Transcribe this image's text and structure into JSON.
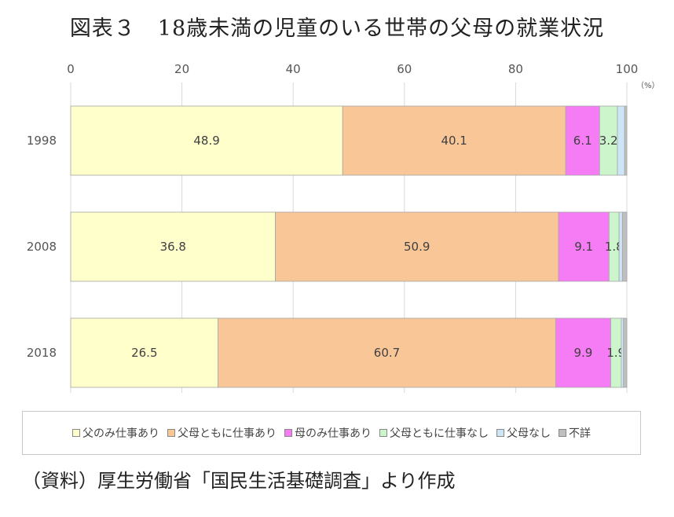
{
  "title": "図表３　18歳未満の児童のいる世帯の父母の就業状況",
  "source": "（資料）厚生労働省「国民生活基礎調査」より作成",
  "chart_data": {
    "type": "bar",
    "orientation": "horizontal",
    "stacked": true,
    "unit_label": "（%）",
    "xlim": [
      0,
      100
    ],
    "xticks": [
      0,
      20,
      40,
      60,
      80,
      100
    ],
    "categories": [
      "1998",
      "2008",
      "2018"
    ],
    "series": [
      {
        "name": "父のみ仕事あり",
        "color": "#FFFFCC",
        "values": [
          48.9,
          36.8,
          26.5
        ],
        "labels": [
          "48.9",
          "36.8",
          "26.5"
        ]
      },
      {
        "name": "父母ともに仕事あり",
        "color": "#F9C698",
        "values": [
          40.1,
          50.9,
          60.7
        ],
        "labels": [
          "40.1",
          "50.9",
          "60.7"
        ]
      },
      {
        "name": "母のみ仕事あり",
        "color": "#F57CF5",
        "values": [
          6.1,
          9.1,
          9.9
        ],
        "labels": [
          "6.1",
          "9.1",
          "9.9"
        ]
      },
      {
        "name": "父母ともに仕事なし",
        "color": "#CCF5CC",
        "values": [
          3.2,
          1.8,
          1.9
        ],
        "labels": [
          "3.2",
          "1.8",
          "1.9"
        ]
      },
      {
        "name": "父母なし",
        "color": "#CCE6F8",
        "values": [
          1.3,
          0.6,
          0.4
        ],
        "labels": [
          "",
          "",
          ""
        ]
      },
      {
        "name": "不詳",
        "color": "#BFBFBF",
        "values": [
          0.4,
          0.8,
          0.6
        ],
        "labels": [
          "",
          "",
          ""
        ]
      }
    ],
    "grid": true,
    "legend_position": "bottom"
  }
}
